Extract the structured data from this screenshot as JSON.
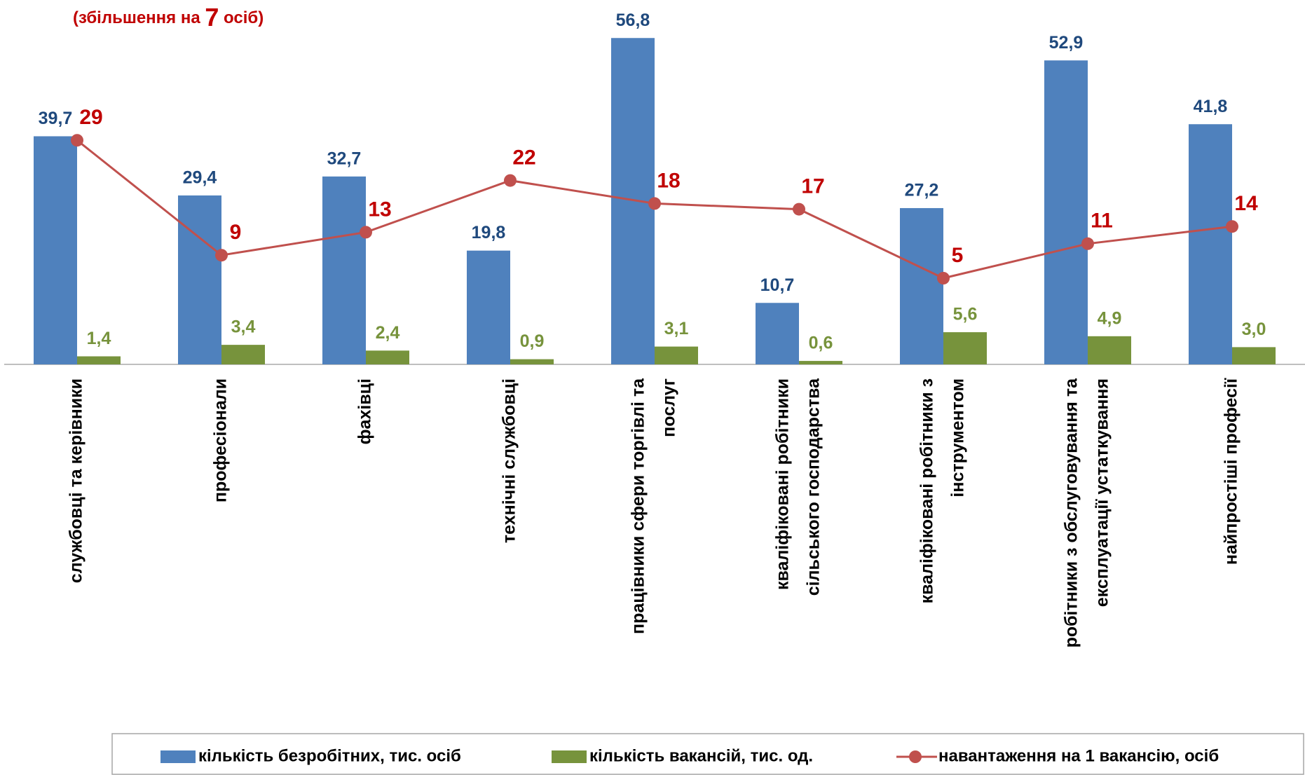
{
  "chart_data": {
    "type": "bar",
    "title_parts": [
      "(збільшення на ",
      "7",
      " осіб)"
    ],
    "categories": [
      [
        "службовці та керівники"
      ],
      [
        "професіонали"
      ],
      [
        "фахівці"
      ],
      [
        "технічні службовці"
      ],
      [
        "працівники сфери торгівлі та",
        "послуг"
      ],
      [
        "кваліфіковані робітники",
        "сільського господарства"
      ],
      [
        "кваліфіковані робітники з",
        "інструментом"
      ],
      [
        "робітники з обслуговування та",
        "експлуатації устаткування"
      ],
      [
        "найпростіші професії"
      ]
    ],
    "series": [
      {
        "name": "кількість безробітних, тис. осіб",
        "type": "bar",
        "color": "#4f81bd",
        "label_color": "#1f497d",
        "values": [
          39.7,
          29.4,
          32.7,
          19.8,
          56.8,
          10.7,
          27.2,
          52.9,
          41.8
        ],
        "value_labels": [
          "39,7",
          "29,4",
          "32,7",
          "19,8",
          "56,8",
          "10,7",
          "27,2",
          "52,9",
          "41,8"
        ]
      },
      {
        "name": "кількість вакансій, тис. од.",
        "type": "bar",
        "color": "#77933c",
        "label_color": "#77933c",
        "values": [
          1.4,
          3.4,
          2.4,
          0.9,
          3.1,
          0.6,
          5.6,
          4.9,
          3.0
        ],
        "value_labels": [
          "1,4",
          "3,4",
          "2,4",
          "0,9",
          "3,1",
          "0,6",
          "5,6",
          "4,9",
          "3,0"
        ]
      },
      {
        "name": "навантаження на 1 вакансію, осіб",
        "type": "line",
        "axis": "y2",
        "color": "#c0504d",
        "label_color": "#c00000",
        "values": [
          29,
          9,
          13,
          22,
          18,
          17,
          5,
          11,
          14
        ]
      }
    ],
    "ylim": [
      0,
      60
    ],
    "y2lim": [
      -10,
      50
    ]
  }
}
